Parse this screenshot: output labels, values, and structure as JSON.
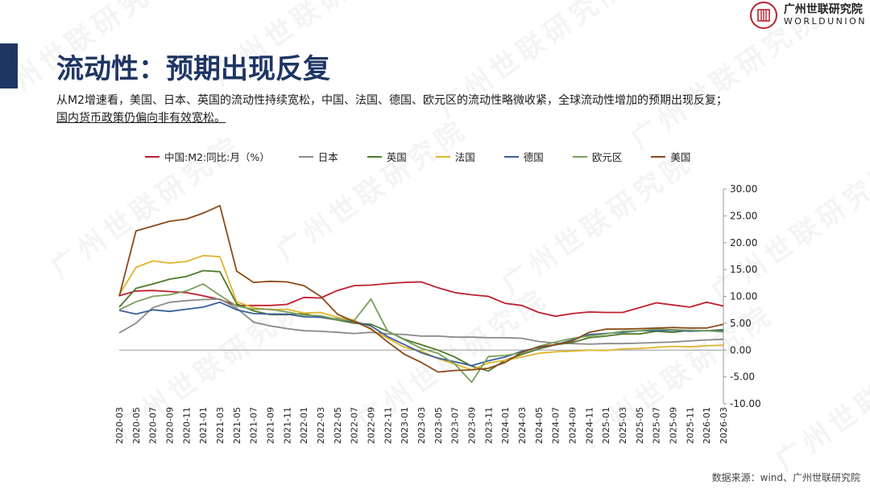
{
  "header": {
    "brand_cn": "广州世联研究院",
    "brand_en": "WORLDUNION",
    "title": "流动性：预期出现反复",
    "subtitle_line1": "从M2增速看，美国、日本、英国的流动性持续宽松，中国、法国、德国、欧元区的流动性略微收紧，全球流动性增加的预期出现反复；",
    "subtitle_line2": "国内货币政策仍偏向非有效宽松。"
  },
  "watermark_text": "广州世联研究院",
  "source": "数据来源：wind、广州世联研究院",
  "colors": {
    "china": "#c0202e",
    "japan": "#8a8a8a",
    "uk": "#4f7a2a",
    "france": "#e0b52a",
    "germany": "#3a5f9a",
    "euro": "#79a05a",
    "usa": "#8b4a1c",
    "brand": "#b8232f",
    "title": "#1f3564"
  },
  "chart_data": {
    "type": "line",
    "x_ticks": [
      "2020-03",
      "2020-05",
      "2020-07",
      "2020-09",
      "2020-11",
      "2021-01",
      "2021-03",
      "2021-05",
      "2021-07",
      "2021-09",
      "2021-11",
      "2022-01",
      "2022-03",
      "2022-05",
      "2022-07",
      "2022-09",
      "2022-11",
      "2023-01",
      "2023-03",
      "2023-05",
      "2023-07",
      "2023-09",
      "2023-11",
      "2024-01",
      "2024-03",
      "2024-05",
      "2024-07",
      "2024-09",
      "2024-11",
      "2025-01",
      "2025-03",
      "2025-05",
      "2025-07",
      "2025-09",
      "2025-11",
      "2026-01",
      "2026-03"
    ],
    "y_ticks": [
      "30.00",
      "25.00",
      "20.00",
      "15.00",
      "10.00",
      "5.00",
      "0.00",
      "-5.00",
      "-10.00"
    ],
    "ylim": [
      -10,
      30
    ],
    "y_axis_position": "right",
    "legend_position": "top",
    "series": [
      {
        "name": "中国:M2:同比:月（%）",
        "color_key": "china",
        "points": [
          [
            0,
            10.1
          ],
          [
            1,
            11.0
          ],
          [
            2,
            11.1
          ],
          [
            3,
            10.9
          ],
          [
            4,
            10.7
          ],
          [
            5,
            10.1
          ],
          [
            6,
            9.4
          ],
          [
            7,
            8.3
          ],
          [
            8,
            8.3
          ],
          [
            9,
            8.3
          ],
          [
            10,
            8.5
          ],
          [
            11,
            9.8
          ],
          [
            12,
            9.7
          ],
          [
            13,
            11.1
          ],
          [
            14,
            12.0
          ],
          [
            15,
            12.1
          ],
          [
            16,
            12.4
          ],
          [
            17,
            12.6
          ],
          [
            18,
            12.7
          ],
          [
            19,
            11.6
          ],
          [
            20,
            10.7
          ],
          [
            21,
            10.3
          ],
          [
            22,
            10.0
          ],
          [
            23,
            8.7
          ],
          [
            24,
            8.3
          ],
          [
            25,
            7.0
          ],
          [
            26,
            6.3
          ],
          [
            27,
            6.8
          ],
          [
            28,
            7.1
          ],
          [
            29,
            7.0
          ],
          [
            30,
            7.0
          ],
          [
            31,
            7.9
          ],
          [
            32,
            8.8
          ],
          [
            33,
            8.4
          ],
          [
            34,
            8.0
          ],
          [
            35,
            8.9
          ],
          [
            36,
            8.2
          ]
        ]
      },
      {
        "name": "日本",
        "color_key": "japan",
        "points": [
          [
            0,
            3.2
          ],
          [
            1,
            5.0
          ],
          [
            2,
            7.9
          ],
          [
            3,
            8.9
          ],
          [
            4,
            9.2
          ],
          [
            5,
            9.4
          ],
          [
            6,
            9.5
          ],
          [
            7,
            7.8
          ],
          [
            8,
            5.2
          ],
          [
            9,
            4.5
          ],
          [
            10,
            4.0
          ],
          [
            11,
            3.6
          ],
          [
            12,
            3.5
          ],
          [
            13,
            3.3
          ],
          [
            14,
            3.1
          ],
          [
            15,
            3.3
          ],
          [
            16,
            3.0
          ],
          [
            17,
            2.9
          ],
          [
            18,
            2.6
          ],
          [
            19,
            2.6
          ],
          [
            20,
            2.4
          ],
          [
            21,
            2.4
          ],
          [
            22,
            2.3
          ],
          [
            23,
            2.3
          ],
          [
            24,
            2.2
          ],
          [
            25,
            1.6
          ],
          [
            26,
            1.3
          ],
          [
            27,
            1.2
          ],
          [
            28,
            1.1
          ],
          [
            29,
            1.2
          ],
          [
            30,
            1.2
          ],
          [
            31,
            1.3
          ],
          [
            32,
            1.4
          ],
          [
            33,
            1.5
          ],
          [
            34,
            1.7
          ],
          [
            35,
            1.9
          ],
          [
            36,
            2.0
          ]
        ]
      },
      {
        "name": "英国",
        "color_key": "uk",
        "points": [
          [
            0,
            8.0
          ],
          [
            1,
            11.5
          ],
          [
            2,
            12.3
          ],
          [
            3,
            13.2
          ],
          [
            4,
            13.7
          ],
          [
            5,
            14.8
          ],
          [
            6,
            14.6
          ],
          [
            7,
            8.6
          ],
          [
            8,
            7.3
          ],
          [
            9,
            6.6
          ],
          [
            10,
            6.6
          ],
          [
            11,
            6.8
          ],
          [
            12,
            6.1
          ],
          [
            13,
            5.6
          ],
          [
            14,
            5.0
          ],
          [
            15,
            4.8
          ],
          [
            16,
            3.5
          ],
          [
            17,
            2.0
          ],
          [
            18,
            1.0
          ],
          [
            19,
            0.0
          ],
          [
            20,
            -1.3
          ],
          [
            21,
            -3.0
          ],
          [
            22,
            -3.9
          ],
          [
            23,
            -1.9
          ],
          [
            24,
            -0.8
          ],
          [
            25,
            0.2
          ],
          [
            26,
            1.0
          ],
          [
            27,
            1.4
          ],
          [
            28,
            2.3
          ],
          [
            29,
            2.6
          ],
          [
            30,
            3.0
          ],
          [
            31,
            3.0
          ],
          [
            32,
            3.5
          ],
          [
            33,
            3.3
          ],
          [
            34,
            3.7
          ],
          [
            35,
            3.6
          ],
          [
            36,
            3.8
          ]
        ]
      },
      {
        "name": "法国",
        "color_key": "france",
        "points": [
          [
            0,
            10.3
          ],
          [
            1,
            15.4
          ],
          [
            2,
            16.6
          ],
          [
            3,
            16.2
          ],
          [
            4,
            16.5
          ],
          [
            5,
            17.6
          ],
          [
            6,
            17.4
          ],
          [
            7,
            9.0
          ],
          [
            8,
            7.9
          ],
          [
            9,
            7.5
          ],
          [
            10,
            7.6
          ],
          [
            11,
            6.9
          ],
          [
            12,
            7.0
          ],
          [
            13,
            6.1
          ],
          [
            14,
            5.6
          ],
          [
            15,
            3.8
          ],
          [
            16,
            2.2
          ],
          [
            17,
            0.5
          ],
          [
            18,
            -0.2
          ],
          [
            19,
            -1.6
          ],
          [
            20,
            -2.6
          ],
          [
            21,
            -3.7
          ],
          [
            22,
            -2.4
          ],
          [
            23,
            -1.9
          ],
          [
            24,
            -1.3
          ],
          [
            25,
            -0.6
          ],
          [
            26,
            -0.3
          ],
          [
            27,
            -0.2
          ],
          [
            28,
            0.0
          ],
          [
            29,
            -0.1
          ],
          [
            30,
            0.2
          ],
          [
            31,
            0.3
          ],
          [
            32,
            0.5
          ],
          [
            33,
            0.7
          ],
          [
            34,
            0.6
          ],
          [
            35,
            0.8
          ],
          [
            36,
            0.9
          ]
        ]
      },
      {
        "name": "德国",
        "color_key": "germany",
        "points": [
          [
            0,
            7.4
          ],
          [
            1,
            6.7
          ],
          [
            2,
            7.5
          ],
          [
            3,
            7.2
          ],
          [
            4,
            7.6
          ],
          [
            5,
            8.0
          ],
          [
            6,
            8.9
          ],
          [
            7,
            7.5
          ],
          [
            8,
            6.8
          ],
          [
            9,
            6.7
          ],
          [
            10,
            6.7
          ],
          [
            11,
            6.2
          ],
          [
            12,
            6.1
          ],
          [
            13,
            5.8
          ],
          [
            14,
            5.3
          ],
          [
            15,
            4.5
          ],
          [
            16,
            2.5
          ],
          [
            17,
            1.0
          ],
          [
            18,
            -0.5
          ],
          [
            19,
            -1.5
          ],
          [
            20,
            -2.2
          ],
          [
            21,
            -2.9
          ],
          [
            22,
            -2.0
          ],
          [
            23,
            -1.3
          ],
          [
            24,
            -0.2
          ],
          [
            25,
            0.5
          ],
          [
            26,
            1.0
          ],
          [
            27,
            1.9
          ],
          [
            28,
            2.9
          ],
          [
            29,
            3.1
          ],
          [
            30,
            3.3
          ],
          [
            31,
            3.6
          ],
          [
            32,
            3.6
          ],
          [
            33,
            3.7
          ],
          [
            34,
            3.5
          ],
          [
            35,
            3.6
          ],
          [
            36,
            3.6
          ]
        ]
      },
      {
        "name": "欧元区",
        "color_key": "euro",
        "points": [
          [
            0,
            7.5
          ],
          [
            1,
            9.0
          ],
          [
            2,
            10.0
          ],
          [
            3,
            10.3
          ],
          [
            4,
            11.0
          ],
          [
            5,
            12.3
          ],
          [
            6,
            10.2
          ],
          [
            7,
            8.2
          ],
          [
            8,
            7.6
          ],
          [
            9,
            7.6
          ],
          [
            10,
            7.1
          ],
          [
            11,
            6.5
          ],
          [
            12,
            6.4
          ],
          [
            13,
            5.7
          ],
          [
            14,
            5.5
          ],
          [
            15,
            9.5
          ],
          [
            16,
            3.5
          ],
          [
            17,
            1.9
          ],
          [
            18,
            0.3
          ],
          [
            19,
            -0.6
          ],
          [
            20,
            -2.6
          ],
          [
            21,
            -6.0
          ],
          [
            22,
            -1.2
          ],
          [
            23,
            -1.0
          ],
          [
            24,
            -0.5
          ],
          [
            25,
            0.7
          ],
          [
            26,
            1.5
          ],
          [
            27,
            2.2
          ],
          [
            28,
            2.6
          ],
          [
            29,
            3.0
          ],
          [
            30,
            3.5
          ],
          [
            31,
            3.6
          ],
          [
            32,
            3.9
          ],
          [
            33,
            3.8
          ],
          [
            34,
            3.7
          ],
          [
            35,
            3.6
          ],
          [
            36,
            3.4
          ]
        ]
      },
      {
        "name": "美国",
        "color_key": "usa",
        "points": [
          [
            0,
            10.0
          ],
          [
            1,
            22.2
          ],
          [
            2,
            23.1
          ],
          [
            3,
            24.0
          ],
          [
            4,
            24.4
          ],
          [
            5,
            25.5
          ],
          [
            6,
            26.9
          ],
          [
            7,
            14.7
          ],
          [
            8,
            12.6
          ],
          [
            9,
            12.8
          ],
          [
            10,
            12.7
          ],
          [
            11,
            12.0
          ],
          [
            12,
            10.0
          ],
          [
            13,
            6.7
          ],
          [
            14,
            5.3
          ],
          [
            15,
            4.0
          ],
          [
            16,
            1.5
          ],
          [
            17,
            -0.8
          ],
          [
            18,
            -2.3
          ],
          [
            19,
            -4.1
          ],
          [
            20,
            -3.8
          ],
          [
            21,
            -3.7
          ],
          [
            22,
            -3.4
          ],
          [
            23,
            -2.3
          ],
          [
            24,
            -0.4
          ],
          [
            25,
            0.6
          ],
          [
            26,
            1.0
          ],
          [
            27,
            1.7
          ],
          [
            28,
            3.3
          ],
          [
            29,
            3.9
          ],
          [
            30,
            3.9
          ],
          [
            31,
            4.0
          ],
          [
            32,
            4.1
          ],
          [
            33,
            4.2
          ],
          [
            34,
            4.1
          ],
          [
            35,
            4.1
          ],
          [
            36,
            4.8
          ]
        ]
      }
    ]
  }
}
